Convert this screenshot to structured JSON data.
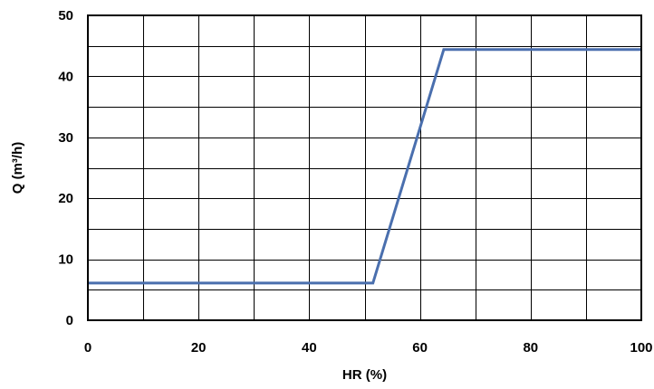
{
  "chart_data": {
    "type": "line",
    "xlabel": "HR (%)",
    "ylabel": "Q (m³/h)",
    "xlim": [
      0,
      100
    ],
    "ylim": [
      0,
      50
    ],
    "x_ticks": [
      0,
      20,
      40,
      60,
      80,
      100
    ],
    "y_ticks": [
      0,
      10,
      20,
      30,
      40,
      50
    ],
    "x_tick_labels": [
      "0",
      "20",
      "40",
      "60",
      "80",
      "100"
    ],
    "y_tick_labels": [
      "0",
      "10",
      "20",
      "30",
      "40",
      "50"
    ],
    "x_grid_step": 10,
    "y_grid_step": 5,
    "grid": true,
    "series": [
      {
        "x": [
          0,
          51.5,
          64.3,
          100
        ],
        "y": [
          6.1,
          6.1,
          44.4,
          44.4
        ],
        "color": "#4a6fae"
      }
    ]
  }
}
